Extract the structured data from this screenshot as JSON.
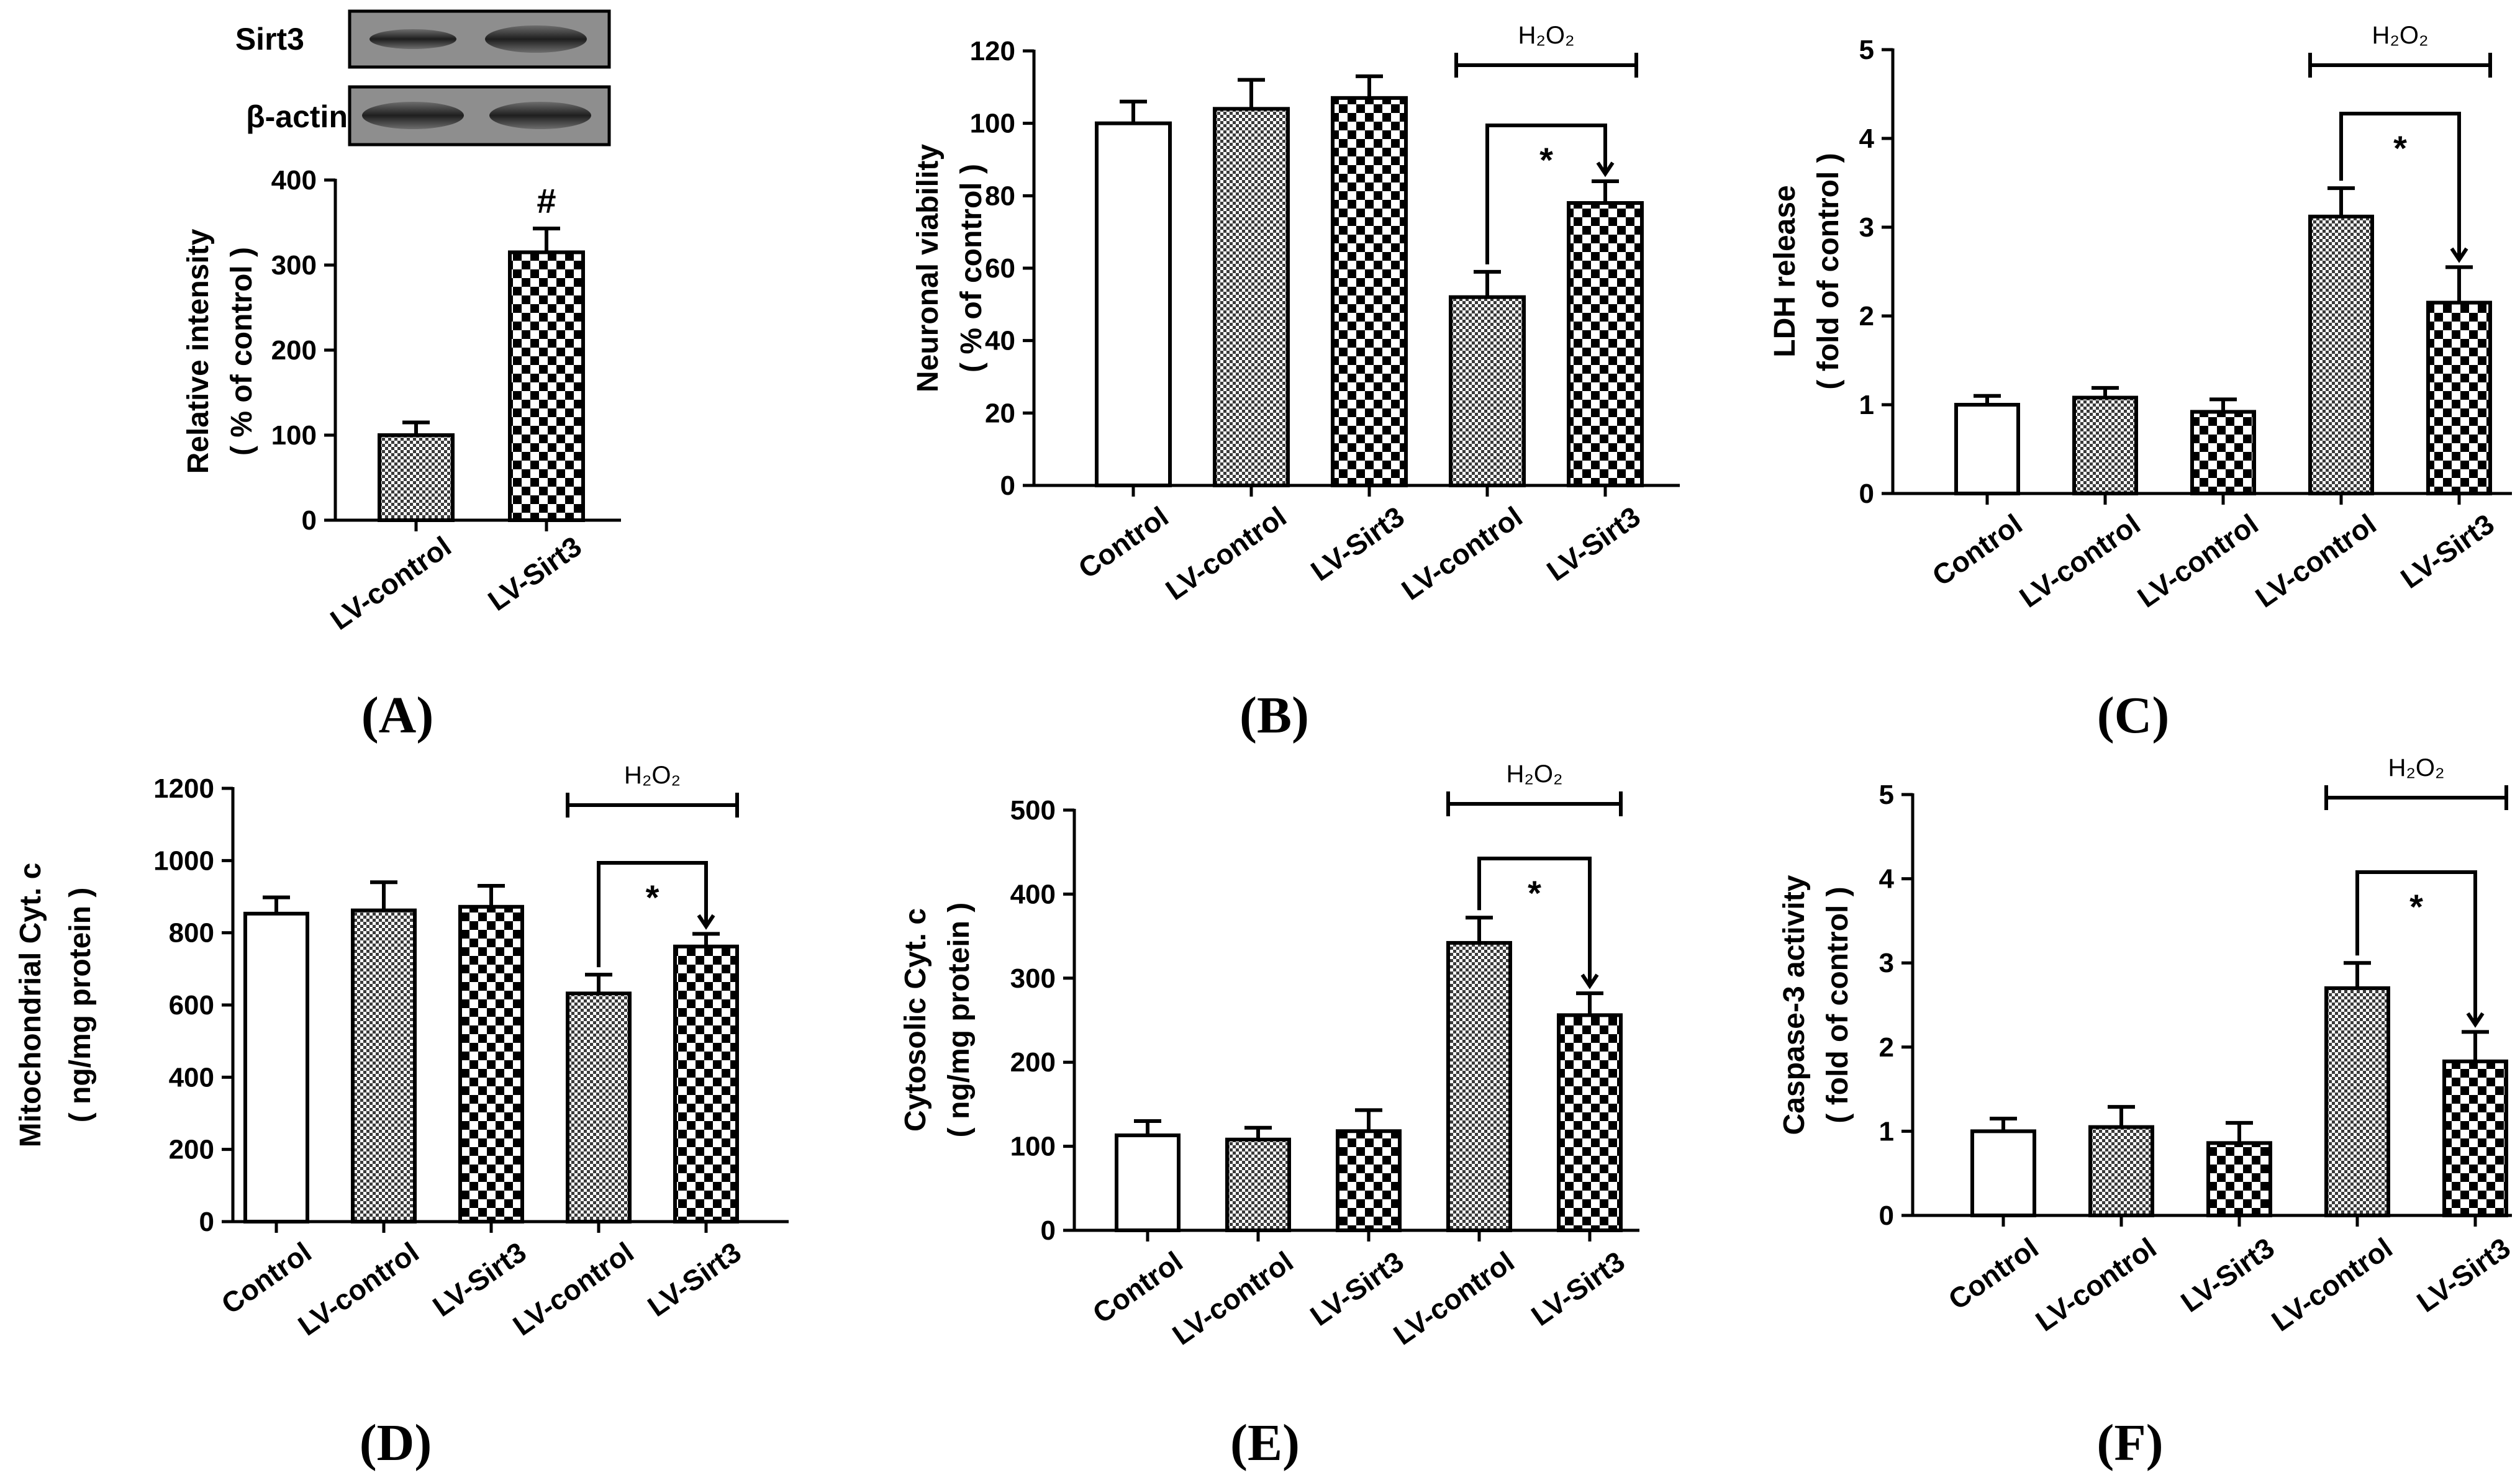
{
  "colors": {
    "ink": "#000000",
    "background": "#ffffff",
    "blot_band": "#3a3a3a",
    "blot_bg": "#8c8c8c"
  },
  "western_blot": {
    "rows": [
      "Sirt3",
      "β-actin"
    ]
  },
  "chart_data": [
    {
      "panel": "(A)",
      "type": "bar",
      "ylabel_lines": [
        "Relative intensity",
        "( % of control )"
      ],
      "ylim": [
        0,
        400
      ],
      "yticks": [
        0,
        100,
        200,
        300,
        400
      ],
      "categories": [
        "LV-control",
        "LV-Sirt3"
      ],
      "values": [
        100,
        315
      ],
      "errors": [
        15,
        28
      ],
      "patterns": [
        "fine",
        "coarse"
      ],
      "annotations": [
        {
          "bar": 1,
          "text": "#"
        }
      ]
    },
    {
      "panel": "(B)",
      "type": "bar",
      "ylabel_lines": [
        "Neuronal viability",
        "( % of control )"
      ],
      "ylim": [
        0,
        120
      ],
      "yticks": [
        0,
        20,
        40,
        60,
        80,
        100,
        120
      ],
      "categories": [
        "Control",
        "LV-control",
        "LV-Sirt3",
        "LV-control",
        "LV-Sirt3"
      ],
      "values": [
        100,
        104,
        107,
        52,
        78
      ],
      "errors": [
        6,
        8,
        6,
        7,
        6
      ],
      "patterns": [
        "white",
        "fine",
        "coarse",
        "fine",
        "coarse"
      ],
      "treatment": {
        "label": "H₂O₂",
        "from": 3,
        "to": 4
      },
      "significance": [
        {
          "from": 3,
          "to": 4,
          "text": "*"
        }
      ]
    },
    {
      "panel": "(C)",
      "type": "bar",
      "ylabel_lines": [
        "LDH release",
        "( fold of control )"
      ],
      "ylim": [
        0,
        5
      ],
      "yticks": [
        0,
        1,
        2,
        3,
        4,
        5
      ],
      "categories": [
        "Control",
        "LV-control",
        "LV-control",
        "LV-control",
        "LV-Sirt3"
      ],
      "values": [
        1.0,
        1.08,
        0.92,
        3.12,
        2.15
      ],
      "errors": [
        0.1,
        0.11,
        0.14,
        0.32,
        0.4
      ],
      "patterns": [
        "white",
        "fine",
        "coarse",
        "fine",
        "coarse"
      ],
      "treatment": {
        "label": "H₂O₂",
        "from": 3,
        "to": 4
      },
      "significance": [
        {
          "from": 3,
          "to": 4,
          "text": "*"
        }
      ]
    },
    {
      "panel": "(D)",
      "type": "bar",
      "ylabel_lines": [
        "Mitochondrial Cyt. c",
        "( ng/mg protein )"
      ],
      "ylim": [
        0,
        1200
      ],
      "yticks": [
        0,
        200,
        400,
        600,
        800,
        1000,
        1200
      ],
      "categories": [
        "Control",
        "LV-control",
        "LV-Sirt3",
        "LV-control",
        "LV-Sirt3"
      ],
      "values": [
        853,
        862,
        872,
        632,
        762
      ],
      "errors": [
        45,
        78,
        58,
        52,
        35
      ],
      "patterns": [
        "white",
        "fine",
        "coarse",
        "fine",
        "coarse"
      ],
      "treatment": {
        "label": "H₂O₂",
        "from": 3,
        "to": 4
      },
      "significance": [
        {
          "from": 3,
          "to": 4,
          "text": "*"
        }
      ]
    },
    {
      "panel": "(E)",
      "type": "bar",
      "ylabel_lines": [
        "Cytosolic Cyt. c",
        "( ng/mg protein )"
      ],
      "ylim": [
        0,
        500
      ],
      "yticks": [
        0,
        100,
        200,
        300,
        400,
        500
      ],
      "categories": [
        "Control",
        "LV-control",
        "LV-Sirt3",
        "LV-control",
        "LV-Sirt3"
      ],
      "values": [
        113,
        108,
        118,
        342,
        256
      ],
      "errors": [
        17,
        14,
        25,
        30,
        26
      ],
      "patterns": [
        "white",
        "fine",
        "coarse",
        "fine",
        "coarse"
      ],
      "treatment": {
        "label": "H₂O₂",
        "from": 3,
        "to": 4
      },
      "significance": [
        {
          "from": 3,
          "to": 4,
          "text": "*"
        }
      ]
    },
    {
      "panel": "(F)",
      "type": "bar",
      "ylabel_lines": [
        "Caspase-3 activity",
        "( fold of control )"
      ],
      "ylim": [
        0,
        5
      ],
      "yticks": [
        0,
        1,
        2,
        3,
        4,
        5
      ],
      "categories": [
        "Control",
        "LV-control",
        "LV-Sirt3",
        "LV-control",
        "LV-Sirt3"
      ],
      "values": [
        1.0,
        1.05,
        0.86,
        2.7,
        1.83
      ],
      "errors": [
        0.15,
        0.24,
        0.24,
        0.3,
        0.35
      ],
      "patterns": [
        "white",
        "fine",
        "coarse",
        "fine",
        "coarse"
      ],
      "treatment": {
        "label": "H₂O₂",
        "from": 3,
        "to": 4
      },
      "significance": [
        {
          "from": 3,
          "to": 4,
          "text": "*"
        }
      ]
    }
  ]
}
